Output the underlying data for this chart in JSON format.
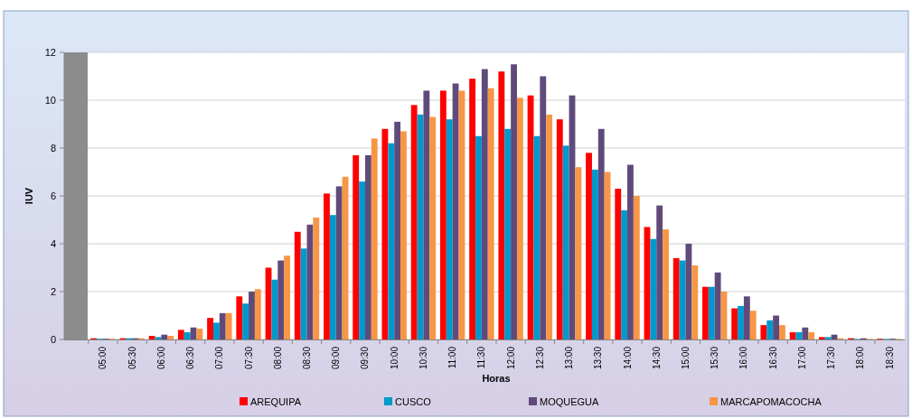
{
  "chart_data": {
    "type": "bar",
    "xlabel": "Horas",
    "ylabel": "IUV",
    "categories": [
      "05:00",
      "05:30",
      "06:00",
      "06:30",
      "07:00",
      "07:30",
      "08:00",
      "08:30",
      "09:00",
      "09:30",
      "10:00",
      "10:30",
      "11:00",
      "11:30",
      "12:00",
      "12:30",
      "13:00",
      "13:30",
      "14:00",
      "14:30",
      "15:00",
      "15:30",
      "16:00",
      "16:30",
      "17:00",
      "17:30",
      "18:00",
      "18:30"
    ],
    "series": [
      {
        "name": "AREQUIPA",
        "color": "#ff0000",
        "values": [
          0.05,
          0.05,
          0.15,
          0.4,
          0.9,
          1.8,
          3.0,
          4.5,
          6.1,
          7.7,
          8.8,
          9.8,
          10.4,
          10.9,
          11.2,
          10.2,
          9.2,
          7.8,
          6.3,
          4.7,
          3.4,
          2.2,
          1.3,
          0.6,
          0.3,
          0.1,
          0.05,
          0.03
        ]
      },
      {
        "name": "CUSCO",
        "color": "#0099cc",
        "values": [
          0.03,
          0.05,
          0.1,
          0.3,
          0.7,
          1.5,
          2.5,
          3.8,
          5.2,
          6.6,
          8.2,
          9.4,
          9.2,
          8.5,
          8.8,
          8.5,
          8.1,
          7.1,
          5.4,
          4.2,
          3.3,
          2.2,
          1.4,
          0.8,
          0.3,
          0.1,
          0.02,
          0.02
        ]
      },
      {
        "name": "MOQUEGUA",
        "color": "#604a7b",
        "values": [
          0.03,
          0.05,
          0.2,
          0.5,
          1.1,
          2.0,
          3.3,
          4.8,
          6.4,
          7.7,
          9.1,
          10.4,
          10.7,
          11.3,
          11.5,
          11.0,
          10.2,
          8.8,
          7.3,
          5.6,
          4.0,
          2.8,
          1.8,
          1.0,
          0.5,
          0.2,
          0.05,
          0.03
        ]
      },
      {
        "name": "MARCAPOMACOCHA",
        "color": "#f79646",
        "values": [
          0.03,
          0.05,
          0.15,
          0.45,
          1.1,
          2.1,
          3.5,
          5.1,
          6.8,
          8.4,
          8.7,
          9.3,
          10.4,
          10.5,
          10.1,
          9.4,
          7.2,
          7.0,
          6.0,
          4.6,
          3.1,
          2.0,
          1.2,
          0.6,
          0.3,
          0.05,
          0.02,
          0.02
        ]
      }
    ],
    "ylim": [
      0,
      12
    ],
    "yticks": [
      0,
      2,
      4,
      6,
      8,
      10,
      12
    ],
    "grid": "y",
    "legend": "bottom"
  }
}
